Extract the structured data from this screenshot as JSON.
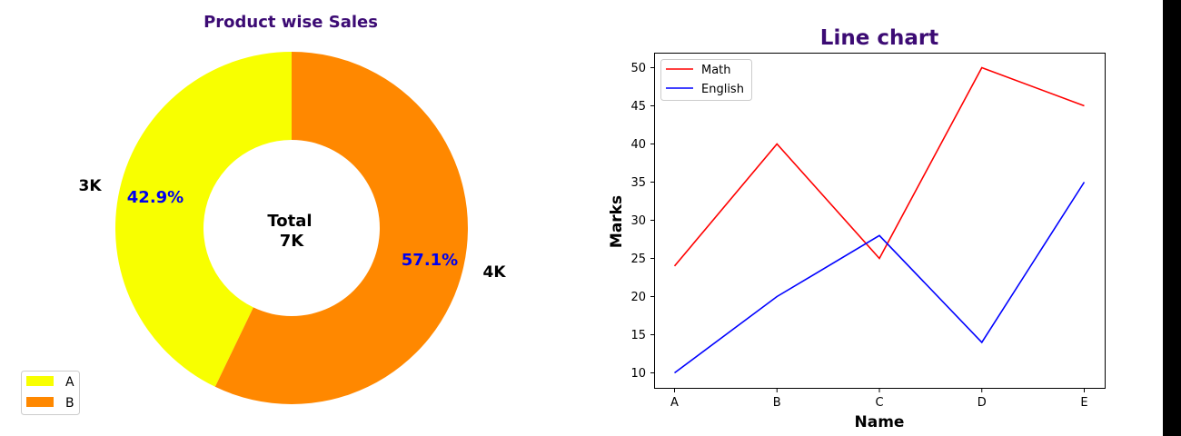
{
  "chart_data": [
    {
      "type": "pie",
      "subtype": "donut",
      "title": "Product wise Sales",
      "categories": [
        "A",
        "B"
      ],
      "values": [
        3,
        4
      ],
      "value_labels": [
        "3K",
        "4K"
      ],
      "percent_labels": [
        "42.9%",
        "57.1%"
      ],
      "colors": [
        "#f8ff00",
        "#ff8800"
      ],
      "center_label": [
        "Total",
        "7K"
      ],
      "title_color": "#3c0b74",
      "percent_color": "#0000ee",
      "legend_position": "lower-left"
    },
    {
      "type": "line",
      "title": "Line chart",
      "title_color": "#3c0b74",
      "categories": [
        "A",
        "B",
        "C",
        "D",
        "E"
      ],
      "series": [
        {
          "name": "Math",
          "values": [
            24,
            40,
            25,
            50,
            45
          ],
          "color": "#ff0000"
        },
        {
          "name": "English",
          "values": [
            10,
            20,
            28,
            14,
            35
          ],
          "color": "#0000ff"
        }
      ],
      "xlabel": "Name",
      "ylabel": "Marks",
      "ylim": [
        8,
        52
      ],
      "yticks": [
        10,
        15,
        20,
        25,
        30,
        35,
        40,
        45,
        50
      ],
      "grid": false,
      "legend_position": "top-left"
    }
  ]
}
